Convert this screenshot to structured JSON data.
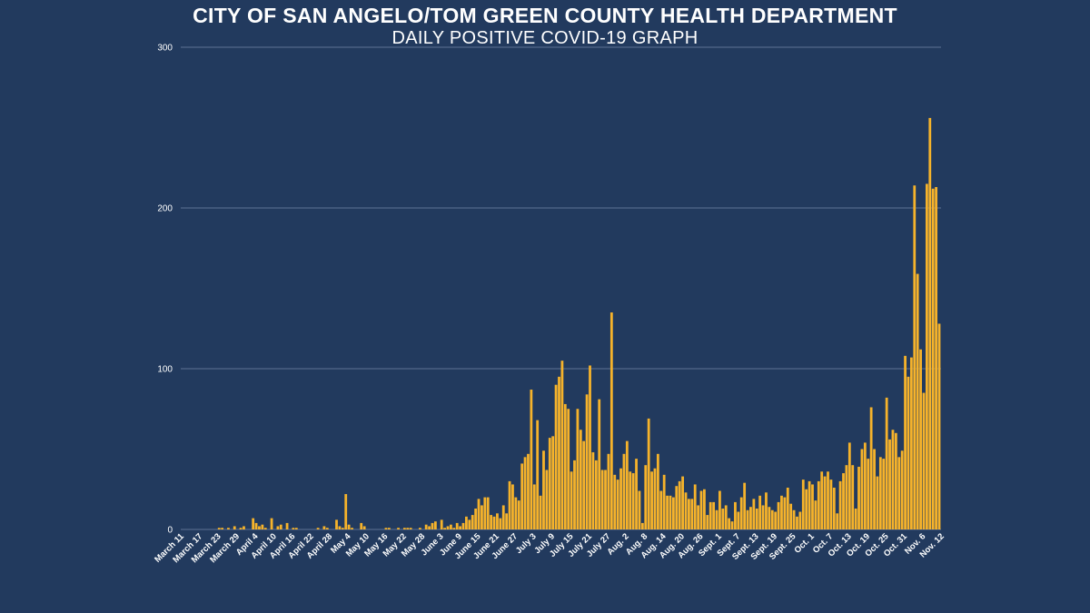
{
  "title": "CITY OF SAN ANGELO/TOM GREEN COUNTY HEALTH DEPARTMENT",
  "subtitle": "DAILY POSITIVE COVID-19 GRAPH",
  "colors": {
    "background": "#223a5e",
    "bar": "#f6b32b",
    "grid": "#5d7294",
    "text": "#ffffff"
  },
  "chart_data": {
    "type": "bar",
    "title": "CITY OF SAN ANGELO/TOM GREEN COUNTY HEALTH DEPARTMENT",
    "subtitle": "DAILY POSITIVE COVID-19 GRAPH",
    "xlabel": "",
    "ylabel": "",
    "ylim": [
      0,
      300
    ],
    "yticks": [
      0,
      100,
      200,
      300
    ],
    "grid": "horizontal",
    "xtick_labels": [
      "March 11",
      "March 17",
      "March 23",
      "March 29",
      "April 4",
      "April 10",
      "April 16",
      "April 22",
      "April 28",
      "May 4",
      "May 10",
      "May 16",
      "May 22",
      "May 28",
      "June 3",
      "June 9",
      "June 15",
      "June 21",
      "June 27",
      "July 3",
      "July 9",
      "July 15",
      "July 21",
      "July 27",
      "Aug. 2",
      "Aug. 8",
      "Aug. 14",
      "Aug. 20",
      "Aug. 26",
      "Sept. 1",
      "Sept. 7",
      "Sept. 13",
      "Sept. 19",
      "Sept. 25",
      "Oct. 1",
      "Oct. 7",
      "Oct. 13",
      "Oct. 19",
      "Oct. 25",
      "Oct. 31",
      "Nov. 6",
      "Nov. 12"
    ],
    "values": [
      0,
      0,
      0,
      0,
      0,
      0,
      0,
      0,
      0,
      0,
      0,
      0,
      1,
      1,
      0,
      1,
      0,
      2,
      0,
      1,
      2,
      0,
      0,
      7,
      4,
      2,
      3,
      1,
      0,
      7,
      0,
      2,
      3,
      0,
      4,
      0,
      1,
      1,
      0,
      0,
      0,
      0,
      0,
      0,
      1,
      0,
      2,
      1,
      0,
      0,
      6,
      2,
      1,
      22,
      3,
      1,
      0,
      0,
      4,
      2,
      0,
      0,
      0,
      0,
      0,
      0,
      1,
      1,
      0,
      0,
      1,
      0,
      1,
      1,
      1,
      0,
      0,
      1,
      0,
      3,
      2,
      4,
      5,
      0,
      6,
      1,
      2,
      3,
      1,
      4,
      2,
      4,
      8,
      6,
      9,
      13,
      19,
      15,
      20,
      20,
      9,
      8,
      10,
      7,
      15,
      10,
      30,
      28,
      20,
      18,
      41,
      45,
      47,
      87,
      28,
      68,
      21,
      49,
      37,
      57,
      58,
      90,
      95,
      105,
      78,
      75,
      36,
      43,
      75,
      62,
      55,
      84,
      102,
      48,
      43,
      81,
      37,
      37,
      47,
      135,
      34,
      31,
      38,
      47,
      55,
      36,
      35,
      44,
      24,
      4,
      40,
      69,
      36,
      38,
      47,
      24,
      34,
      21,
      21,
      20,
      27,
      30,
      33,
      23,
      19,
      19,
      28,
      15,
      24,
      25,
      9,
      17,
      17,
      12,
      24,
      13,
      15,
      7,
      5,
      17,
      11,
      20,
      29,
      12,
      14,
      19,
      13,
      21,
      15,
      23,
      14,
      12,
      11,
      17,
      21,
      20,
      26,
      16,
      12,
      8,
      11,
      31,
      25,
      30,
      28,
      18,
      30,
      36,
      33,
      36,
      31,
      26,
      10,
      30,
      35,
      40,
      54,
      40,
      13,
      39,
      50,
      54,
      44,
      76,
      50,
      33,
      45,
      44,
      82,
      56,
      62,
      60,
      45,
      49,
      108,
      95,
      107,
      214,
      159,
      112,
      85,
      215,
      256,
      212,
      213,
      128
    ]
  }
}
